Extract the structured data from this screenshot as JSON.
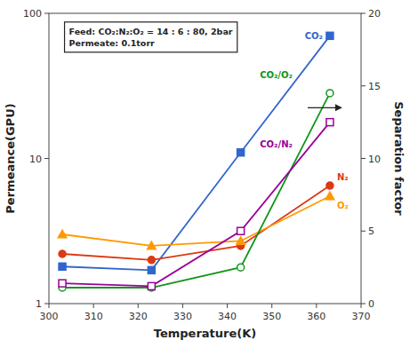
{
  "chart_data": {
    "type": "line",
    "xlabel": "Temperature(K)",
    "ylabel": "Permeance(GPU)",
    "y2label": "Separation factor",
    "x": [
      303,
      323,
      343,
      363
    ],
    "xlim": [
      300,
      370
    ],
    "xticks": [
      300,
      310,
      320,
      330,
      340,
      350,
      360,
      370
    ],
    "log": "y",
    "ylim": [
      1,
      100
    ],
    "yticks": [
      1,
      10,
      100
    ],
    "y2lim": [
      0,
      20
    ],
    "y2ticks": [
      0,
      5,
      10,
      15,
      20
    ],
    "grid": false,
    "series": [
      {
        "name": "CO₂",
        "marker": "square",
        "values": [
          1.8,
          1.7,
          11.0,
          70.0
        ]
      },
      {
        "name": "N₂",
        "marker": "circle",
        "values": [
          2.2,
          2.0,
          2.5,
          6.5
        ]
      },
      {
        "name": "O₂",
        "marker": "triangle",
        "values": [
          3.0,
          2.5,
          2.7,
          5.5
        ]
      },
      {
        "name": "CO₂/O₂",
        "marker": "circle",
        "axis": "y2",
        "values": [
          1.1,
          1.1,
          2.5,
          14.5
        ]
      },
      {
        "name": "CO₂/N₂",
        "marker": "square",
        "axis": "y2",
        "values": [
          1.4,
          1.2,
          5.0,
          12.5
        ]
      }
    ],
    "annotations": [
      "Feed: CO₂:N₂:O₂ = 14 : 6 : 80, 2bar",
      "Permeate: 0.1torr"
    ]
  }
}
